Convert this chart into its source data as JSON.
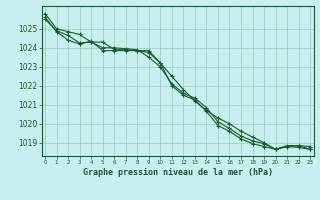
{
  "title": "Graphe pression niveau de la mer (hPa)",
  "bg_color": "#c8eef0",
  "grid_color": "#99ccbb",
  "line_color": "#1a5c2a",
  "x_min": 0,
  "x_max": 23,
  "y_min": 1018.3,
  "y_max": 1026.2,
  "y_ticks": [
    1019,
    1020,
    1021,
    1022,
    1023,
    1024,
    1025
  ],
  "series1": [
    1025.8,
    1025.0,
    1024.85,
    1024.7,
    1024.3,
    1024.3,
    1023.9,
    1023.9,
    1023.85,
    1023.85,
    1023.2,
    1022.5,
    1021.8,
    1021.2,
    1020.7,
    1020.3,
    1020.0,
    1019.6,
    1019.3,
    1019.0,
    1018.65,
    1018.8,
    1018.85,
    1018.8
  ],
  "series2": [
    1025.5,
    1024.9,
    1024.65,
    1024.25,
    1024.3,
    1024.0,
    1024.0,
    1023.95,
    1023.9,
    1023.5,
    1023.0,
    1022.1,
    1021.6,
    1021.35,
    1020.85,
    1020.1,
    1019.75,
    1019.35,
    1019.1,
    1018.95,
    1018.65,
    1018.85,
    1018.85,
    1018.65
  ],
  "series3": [
    1025.6,
    1024.85,
    1024.4,
    1024.2,
    1024.35,
    1023.85,
    1023.85,
    1023.85,
    1023.85,
    1023.75,
    1023.2,
    1022.0,
    1021.5,
    1021.25,
    1020.65,
    1019.9,
    1019.6,
    1019.2,
    1018.95,
    1018.8,
    1018.65,
    1018.8,
    1018.75,
    1018.65
  ]
}
